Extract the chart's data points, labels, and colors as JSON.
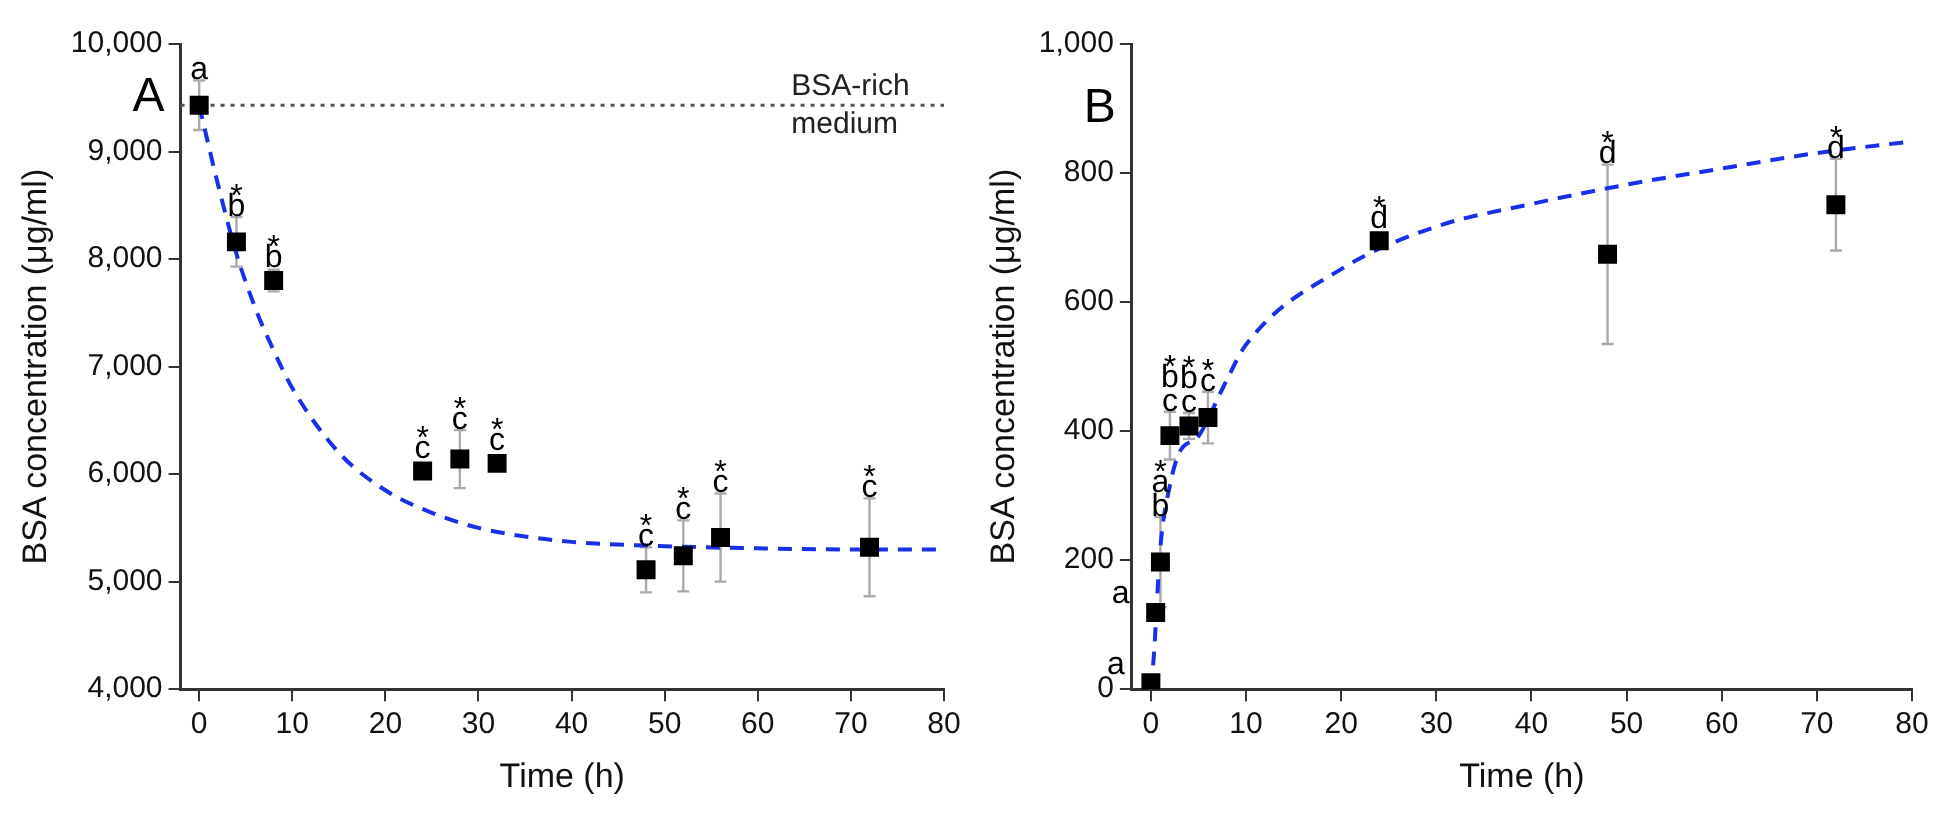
{
  "chart_data": [
    {
      "type": "scatter",
      "xlabel": "Time (h)",
      "ylabel": "BSA concentration (μg/ml)",
      "xlim": [
        -2,
        80
      ],
      "xticks": [
        0,
        10,
        20,
        30,
        40,
        50,
        60,
        70,
        80
      ],
      "ylim": [
        4000,
        10000
      ],
      "yticks": [
        {
          "value": 4000,
          "label": "4,000"
        },
        {
          "value": 5000,
          "label": "5,000"
        },
        {
          "value": 6000,
          "label": "6,000"
        },
        {
          "value": 7000,
          "label": "7,000"
        },
        {
          "value": 8000,
          "label": "8,000"
        },
        {
          "value": 9000,
          "label": "9,000"
        },
        {
          "value": 10000,
          "label": "10,000"
        }
      ],
      "grid": false,
      "legend": false,
      "series": [
        {
          "type": "scatter",
          "color": "#000000",
          "marker": "square",
          "x": [
            0,
            4,
            8,
            24,
            28,
            32,
            48,
            52,
            56,
            72
          ],
          "values": [
            9430,
            8160,
            7800,
            6030,
            6140,
            6100,
            5110,
            5240,
            5410,
            5320
          ],
          "errors": [
            230,
            230,
            100,
            null,
            270,
            null,
            210,
            330,
            410,
            455
          ]
        },
        {
          "type": "line",
          "color": "#1a2fe8",
          "line_style": "dashed",
          "x": [
            0,
            2,
            4,
            6,
            8,
            10,
            15,
            20,
            25,
            30,
            35,
            40,
            50,
            60,
            70,
            80
          ],
          "values": [
            9430,
            8700,
            8050,
            7550,
            7150,
            6800,
            6200,
            5850,
            5640,
            5500,
            5420,
            5370,
            5330,
            5310,
            5300,
            5300
          ]
        }
      ],
      "ref_lines": [
        {
          "axis": "y",
          "value": 9430,
          "label": "BSA-rich\nmedium",
          "color": "#555555",
          "line_style": "dotted"
        }
      ],
      "annotations": [
        "A",
        {
          "text": "a",
          "x": 0,
          "y": 9430
        },
        {
          "text": "*",
          "x": 4,
          "y": 8160
        },
        {
          "text": "b",
          "x": 4,
          "y": 8160
        },
        {
          "text": "*",
          "x": 8,
          "y": 7800
        },
        {
          "text": "b",
          "x": 8,
          "y": 7800
        },
        {
          "text": "*",
          "x": 24,
          "y": 6030
        },
        {
          "text": "c",
          "x": 24,
          "y": 6030
        },
        {
          "text": "*",
          "x": 28,
          "y": 6140
        },
        {
          "text": "c",
          "x": 28,
          "y": 6140
        },
        {
          "text": "*",
          "x": 32,
          "y": 6100
        },
        {
          "text": "c",
          "x": 32,
          "y": 6100
        },
        {
          "text": "*",
          "x": 48,
          "y": 5110
        },
        {
          "text": "c",
          "x": 48,
          "y": 5110
        },
        {
          "text": "*",
          "x": 52,
          "y": 5240
        },
        {
          "text": "c",
          "x": 52,
          "y": 5240
        },
        {
          "text": "*",
          "x": 56,
          "y": 5410
        },
        {
          "text": "c",
          "x": 56,
          "y": 5410
        },
        {
          "text": "*",
          "x": 72,
          "y": 5320
        },
        {
          "text": "c",
          "x": 72,
          "y": 5320
        }
      ]
    },
    {
      "type": "scatter",
      "xlabel": "Time (h)",
      "ylabel": "BSA concentration (μg/ml)",
      "xlim": [
        -2,
        80
      ],
      "xticks": [
        0,
        10,
        20,
        30,
        40,
        50,
        60,
        70,
        80
      ],
      "ylim": [
        0,
        1000
      ],
      "yticks": [
        0,
        200,
        400,
        600,
        800,
        {
          "value": 1000,
          "label": "1,000"
        }
      ],
      "grid": false,
      "legend": false,
      "series": [
        {
          "type": "scatter",
          "color": "#000000",
          "marker": "square",
          "x": [
            0,
            0.5,
            1,
            2,
            4,
            6,
            24,
            48,
            72
          ],
          "values": [
            10,
            119,
            197,
            393,
            408,
            421,
            695,
            674,
            751
          ],
          "errors": [
            null,
            null,
            70,
            37,
            20,
            40,
            null,
            139,
            71
          ]
        },
        {
          "type": "line",
          "color": "#1a2fe8",
          "line_style": "dashed",
          "x": [
            0,
            0.3,
            1,
            2,
            3,
            5,
            7.6,
            10,
            20,
            30,
            40,
            50,
            60,
            70,
            80
          ],
          "values": [
            0,
            50,
            220,
            316,
            367,
            392,
            468,
            534,
            651,
            717,
            752,
            782,
            807,
            831,
            849
          ]
        }
      ],
      "annotations": [
        "B",
        {
          "text": "a",
          "x": 0,
          "y": 10
        },
        {
          "text": "a",
          "x": 0.5,
          "y": 119
        },
        {
          "text": "*",
          "x": 1,
          "y": 197
        },
        {
          "text": "a",
          "x": 1,
          "y": 197
        },
        {
          "text": "b",
          "x": 1,
          "y": 197
        },
        {
          "text": "*",
          "x": 2,
          "y": 393
        },
        {
          "text": "b",
          "x": 2,
          "y": 393
        },
        {
          "text": "c",
          "x": 2,
          "y": 393
        },
        {
          "text": "*",
          "x": 4,
          "y": 408
        },
        {
          "text": "b",
          "x": 4,
          "y": 408
        },
        {
          "text": "c",
          "x": 4,
          "y": 408
        },
        {
          "text": "*",
          "x": 6,
          "y": 421
        },
        {
          "text": "c",
          "x": 6,
          "y": 421
        },
        {
          "text": "*",
          "x": 24,
          "y": 695
        },
        {
          "text": "d",
          "x": 24,
          "y": 695
        },
        {
          "text": "*",
          "x": 48,
          "y": 674
        },
        {
          "text": "d",
          "x": 48,
          "y": 674
        },
        {
          "text": "*",
          "x": 72,
          "y": 751
        },
        {
          "text": "d",
          "x": 72,
          "y": 751
        }
      ]
    }
  ]
}
